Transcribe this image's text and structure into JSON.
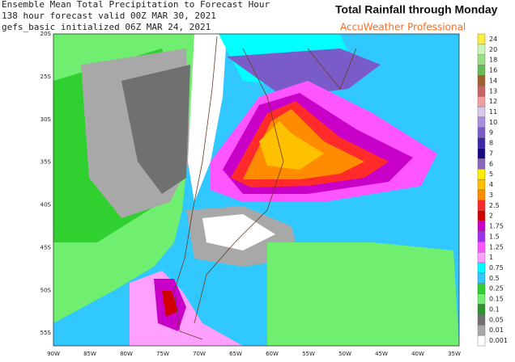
{
  "header": {
    "lines": [
      "Ensemble Mean Total Precipitation to Forecast Hour",
      "138 hour forecast valid 00Z MAR 30, 2021",
      "gefs_basic initialized 06Z MAR 24, 2021"
    ],
    "title": "Total Rainfall through Monday",
    "brand": "AccuWeather Professional"
  },
  "map": {
    "lat_labels": [
      "20S",
      "25S",
      "30S",
      "35S",
      "40S",
      "45S",
      "50S",
      "55S"
    ],
    "lon_labels": [
      "90W",
      "85W",
      "80W",
      "75W",
      "70W",
      "65W",
      "60W",
      "55W",
      "50W",
      "45W",
      "40W",
      "35W"
    ]
  },
  "legend": {
    "items": [
      {
        "label": "24",
        "color": "#ffee44"
      },
      {
        "label": "20",
        "color": "#ccf5bb"
      },
      {
        "label": "18",
        "color": "#99dd88"
      },
      {
        "label": "16",
        "color": "#66bb55"
      },
      {
        "label": "14",
        "color": "#a0622d"
      },
      {
        "label": "13",
        "color": "#c86464"
      },
      {
        "label": "12",
        "color": "#f0a0a0"
      },
      {
        "label": "11",
        "color": "#d8c8ec"
      },
      {
        "label": "10",
        "color": "#a890dc"
      },
      {
        "label": "9",
        "color": "#7a5cc8"
      },
      {
        "label": "8",
        "color": "#3a2aa8"
      },
      {
        "label": "7",
        "color": "#1a0a80"
      },
      {
        "label": "6",
        "color": "#8866bb"
      },
      {
        "label": "5",
        "color": "#ffee00"
      },
      {
        "label": "4",
        "color": "#ffc000"
      },
      {
        "label": "3",
        "color": "#ff8c00"
      },
      {
        "label": "2.5",
        "color": "#ff2a2a"
      },
      {
        "label": "2",
        "color": "#d00000"
      },
      {
        "label": "1.75",
        "color": "#c800c8"
      },
      {
        "label": "1.5",
        "color": "#a030f0"
      },
      {
        "label": "1.25",
        "color": "#ff55ff"
      },
      {
        "label": "1",
        "color": "#ffa0ff"
      },
      {
        "label": "0.75",
        "color": "#00ffff"
      },
      {
        "label": "0.5",
        "color": "#30c8ff"
      },
      {
        "label": "0.25",
        "color": "#30d030"
      },
      {
        "label": "0.15",
        "color": "#70ee70"
      },
      {
        "label": "0.1",
        "color": "#309030"
      },
      {
        "label": "0.05",
        "color": "#707070"
      },
      {
        "label": "0.01",
        "color": "#a8a8a8"
      },
      {
        "label": "0.001",
        "color": "#ffffff"
      }
    ]
  }
}
